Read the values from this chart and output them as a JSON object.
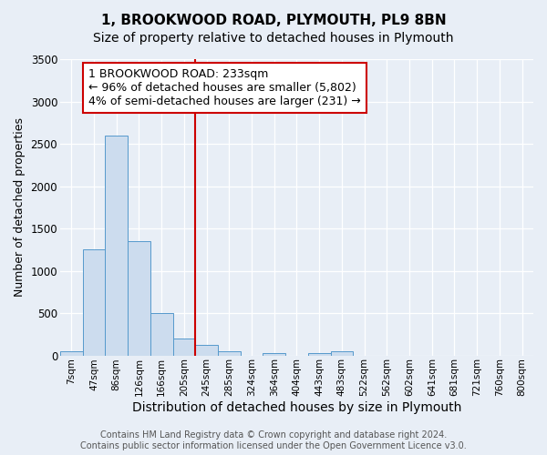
{
  "title": "1, BROOKWOOD ROAD, PLYMOUTH, PL9 8BN",
  "subtitle": "Size of property relative to detached houses in Plymouth",
  "xlabel": "Distribution of detached houses by size in Plymouth",
  "ylabel": "Number of detached properties",
  "bin_labels": [
    "7sqm",
    "47sqm",
    "86sqm",
    "126sqm",
    "166sqm",
    "205sqm",
    "245sqm",
    "285sqm",
    "324sqm",
    "364sqm",
    "404sqm",
    "443sqm",
    "483sqm",
    "522sqm",
    "562sqm",
    "602sqm",
    "641sqm",
    "681sqm",
    "721sqm",
    "760sqm",
    "800sqm"
  ],
  "bar_values": [
    50,
    1250,
    2600,
    1350,
    500,
    200,
    120,
    50,
    0,
    25,
    0,
    30,
    50,
    0,
    0,
    0,
    0,
    0,
    0,
    0,
    0
  ],
  "bar_color": "#ccdcee",
  "bar_edge_color": "#5599cc",
  "ylim": [
    0,
    3500
  ],
  "yticks": [
    0,
    500,
    1000,
    1500,
    2000,
    2500,
    3000,
    3500
  ],
  "red_line_bin": 6,
  "annotation_text": "1 BROOKWOOD ROAD: 233sqm\n← 96% of detached houses are smaller (5,802)\n4% of semi-detached houses are larger (231) →",
  "annotation_box_color": "#ffffff",
  "annotation_edge_color": "#cc0000",
  "red_line_color": "#cc0000",
  "footer_text": "Contains HM Land Registry data © Crown copyright and database right 2024.\nContains public sector information licensed under the Open Government Licence v3.0.",
  "bg_color": "#e8eef6",
  "grid_color": "#ffffff",
  "title_fontsize": 11,
  "subtitle_fontsize": 10,
  "xlabel_fontsize": 10,
  "ylabel_fontsize": 9,
  "tick_fontsize": 7.5,
  "annotation_fontsize": 9,
  "footer_fontsize": 7
}
